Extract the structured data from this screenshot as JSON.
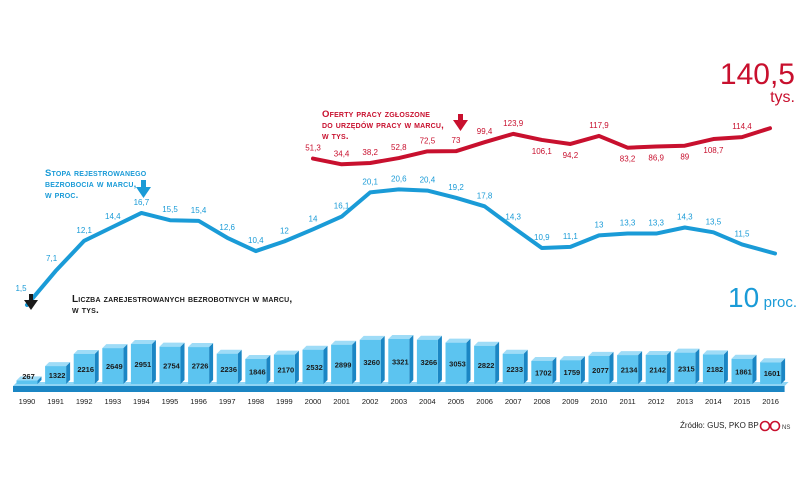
{
  "chart_data": {
    "type": "line+bar",
    "years": [
      "1990",
      "1991",
      "1992",
      "1993",
      "1994",
      "1995",
      "1996",
      "1997",
      "1998",
      "1999",
      "2000",
      "2001",
      "2002",
      "2003",
      "2004",
      "2005",
      "2006",
      "2007",
      "2008",
      "2009",
      "2010",
      "2011",
      "2012",
      "2013",
      "2014",
      "2015",
      "2016"
    ],
    "series": [
      {
        "name": "Stopa rejestrowanego bezrobocia w marcu, w proc.",
        "type": "line",
        "color": "#1a9bd7",
        "values": [
          1.5,
          7.1,
          12.1,
          14.4,
          16.7,
          15.5,
          15.4,
          12.6,
          10.4,
          12,
          14,
          16.1,
          20.1,
          20.6,
          20.4,
          19.2,
          17.8,
          14.3,
          10.9,
          11.1,
          13,
          13.3,
          13.3,
          14.3,
          13.5,
          11.5,
          10
        ],
        "labels": [
          "1,5",
          "7,1",
          "12,1",
          "14,4",
          "16,7",
          "15,5",
          "15,4",
          "12,6",
          "10,4",
          "12",
          "14",
          "16,1",
          "20,1",
          "20,6",
          "20,4",
          "19,2",
          "17,8",
          "14,3",
          "10,9",
          "11,1",
          "13",
          "13,3",
          "13,3",
          "14,3",
          "13,5",
          "11,5",
          ""
        ]
      },
      {
        "name": "Oferty pracy zgłoszone do urzędów pracy w marcu, w tys.",
        "type": "line",
        "color": "#c8102e",
        "start_year": "2000",
        "values": [
          51.3,
          34.4,
          38.2,
          52.8,
          72.5,
          73,
          99.4,
          123.9,
          106.1,
          94.2,
          117.9,
          83.2,
          86.9,
          89,
          108.7,
          114.4,
          140.5
        ],
        "labels": [
          "51,3",
          "34,4",
          "38,2",
          "52,8",
          "72,5",
          "73",
          "99,4",
          "123,9",
          "106,1",
          "94,2",
          "117,9",
          "83,2",
          "86,9",
          "89",
          "108,7",
          "114,4",
          ""
        ]
      },
      {
        "name": "Liczba zarejestrowanych bezrobotnych w marcu, w tys.",
        "type": "bar",
        "color": "#1a9bd7",
        "values": [
          267,
          1322,
          2216,
          2649,
          2951,
          2754,
          2726,
          2236,
          1846,
          2170,
          2532,
          2899,
          3260,
          3321,
          3266,
          3053,
          2822,
          2233,
          1702,
          1759,
          2077,
          2134,
          2142,
          2315,
          2182,
          1861,
          1601
        ]
      }
    ],
    "captions": {
      "rate": [
        "Stopa rejestrowanego",
        "bezrobocia w marcu,",
        "w proc."
      ],
      "offers": [
        "Oferty pracy zgłoszone",
        "do urzędów pracy w marcu,",
        "w tys."
      ],
      "unemployed": [
        "Liczba zarejestrowanych bezrobotnych w marcu,",
        "w tys."
      ]
    },
    "end_labels": {
      "offers_value": "140,5",
      "offers_unit": "tys.",
      "rate_value": "10",
      "rate_unit": "proc."
    },
    "source": "Źródło: GUS, PKO BP",
    "logo_text": "NS"
  },
  "colors": {
    "blue": "#1a9bd7",
    "red": "#c8102e",
    "bar_top": "#5cc4f0",
    "bar_side": "#1b86c4"
  }
}
